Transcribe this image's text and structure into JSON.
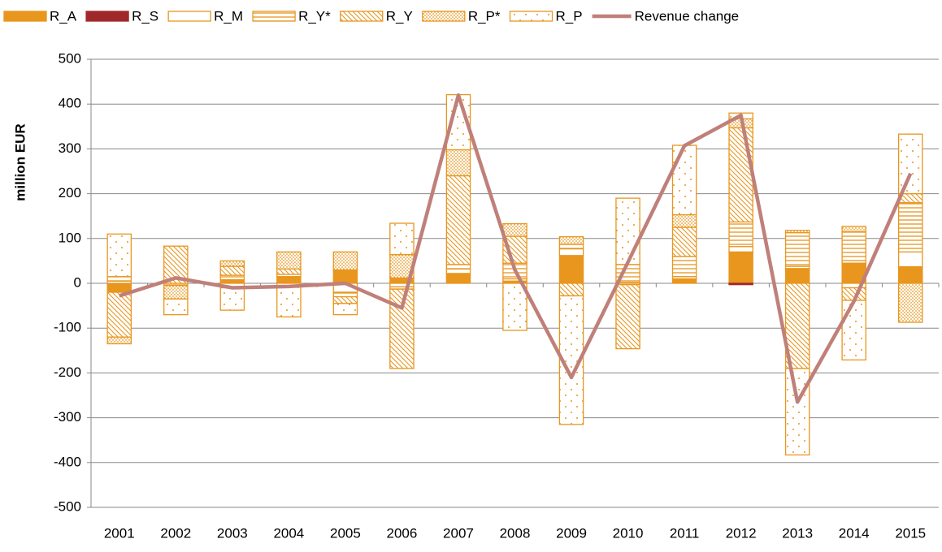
{
  "chart_data": {
    "type": "bar",
    "stacked": true,
    "y_label": "million EUR",
    "categories": [
      "2001",
      "2002",
      "2003",
      "2004",
      "2005",
      "2006",
      "2007",
      "2008",
      "2009",
      "2010",
      "2011",
      "2012",
      "2013",
      "2014",
      "2015"
    ],
    "ylim": [
      -500,
      500
    ],
    "yticks": [
      -500,
      -400,
      -300,
      -200,
      -100,
      0,
      100,
      200,
      300,
      400,
      500
    ],
    "grid": true,
    "legend": "top",
    "series": [
      {
        "name": "R_A",
        "color": "#e8961e",
        "pattern": "solid",
        "values": [
          -20,
          0,
          8,
          15,
          30,
          12,
          22,
          5,
          62,
          2,
          10,
          70,
          33,
          45,
          37
        ]
      },
      {
        "name": "R_S",
        "color": "#a0282a",
        "pattern": "solid",
        "values": [
          0,
          0,
          0,
          0,
          0,
          0,
          0,
          0,
          0,
          0,
          0,
          -3,
          0,
          0,
          0
        ]
      },
      {
        "name": "R_M",
        "color": "#e8961e",
        "pattern": "none",
        "values": [
          5,
          0,
          -10,
          -5,
          -20,
          -8,
          10,
          5,
          15,
          -3,
          5,
          12,
          5,
          -10,
          33
        ]
      },
      {
        "name": "R_Y*",
        "color": "#e8961e",
        "pattern": "hlines",
        "values": [
          10,
          -5,
          10,
          5,
          -10,
          -5,
          10,
          35,
          10,
          40,
          45,
          55,
          75,
          70,
          110
        ]
      },
      {
        "name": "R_Y",
        "color": "#e8961e",
        "pattern": "diag",
        "values": [
          -100,
          83,
          20,
          12,
          -15,
          -177,
          198,
          60,
          -28,
          -143,
          65,
          210,
          -190,
          -28,
          20
        ]
      },
      {
        "name": "R_P*",
        "color": "#e8961e",
        "pattern": "dense-dots",
        "values": [
          -15,
          -30,
          12,
          38,
          40,
          52,
          58,
          28,
          17,
          0,
          28,
          20,
          5,
          12,
          -87
        ]
      },
      {
        "name": "R_P",
        "color": "#e8961e",
        "pattern": "sparse-dots",
        "values": [
          95,
          -35,
          -50,
          -70,
          -25,
          70,
          123,
          -105,
          -287,
          148,
          155,
          13,
          -193,
          -133,
          133
        ]
      },
      {
        "name": "Revenue change",
        "type": "line",
        "color": "#c0807a",
        "values": [
          -28,
          12,
          -10,
          -7,
          0,
          -55,
          420,
          30,
          -210,
          47,
          307,
          375,
          -265,
          -40,
          245
        ]
      }
    ]
  }
}
